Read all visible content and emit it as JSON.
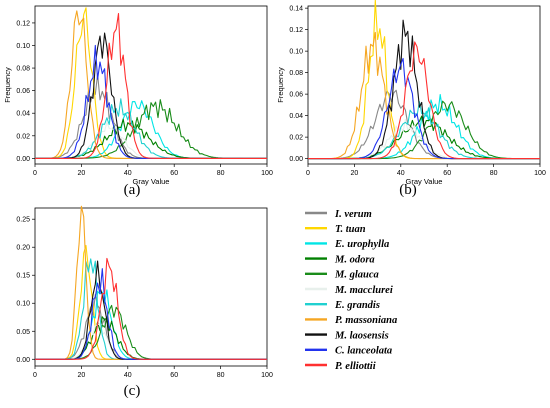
{
  "chart_data": [
    {
      "panel": "(a)",
      "type": "line",
      "xlabel": "Gray Value",
      "ylabel": "Frequency",
      "xlim": [
        0,
        100
      ],
      "ylim": [
        -0.005,
        0.135
      ],
      "xticks": [
        0,
        20,
        40,
        60,
        80,
        100
      ],
      "yticks": [
        0.0,
        0.02,
        0.04,
        0.06,
        0.08,
        0.1,
        0.12
      ],
      "ytick_labels": [
        "0.00",
        "0.02",
        "0.04",
        "0.06",
        "0.08",
        "0.10",
        "0.12"
      ],
      "series": [
        {
          "name": "I. verum",
          "color": "#888888",
          "mean": 27,
          "sd": 6,
          "peak": 0.062
        },
        {
          "name": "T. tuan",
          "color": "#ffd700",
          "mean": 21,
          "sd": 3.6,
          "peak": 0.125
        },
        {
          "name": "E. urophylla",
          "color": "#00e5e5",
          "mean": 44,
          "sd": 7,
          "peak": 0.048
        },
        {
          "name": "M. odora",
          "color": "#008000",
          "mean": 40,
          "sd": 9,
          "peak": 0.03
        },
        {
          "name": "M. glauca",
          "color": "#1a8c1a",
          "mean": 52,
          "sd": 9,
          "peak": 0.046
        },
        {
          "name": "M. macclurei",
          "color": "#e8f0ec",
          "mean": 32,
          "sd": 6,
          "peak": 0.028
        },
        {
          "name": "E. grandis",
          "color": "#20d0d0",
          "mean": 36,
          "sd": 7,
          "peak": 0.044
        },
        {
          "name": "P. massoniana",
          "color": "#f5a623",
          "mean": 19,
          "sd": 3.4,
          "peak": 0.131
        },
        {
          "name": "M. laosensis",
          "color": "#111111",
          "mean": 29,
          "sd": 4,
          "peak": 0.106
        },
        {
          "name": "C. lanceolata",
          "color": "#2233ee",
          "mean": 27,
          "sd": 4.5,
          "peak": 0.085
        },
        {
          "name": "P. elliottii",
          "color": "#ff3030",
          "mean": 35,
          "sd": 4,
          "peak": 0.115
        }
      ]
    },
    {
      "panel": "(b)",
      "type": "line",
      "xlabel": "Gray Value",
      "ylabel": "Frequency",
      "xlim": [
        0,
        100
      ],
      "ylim": [
        -0.005,
        0.142
      ],
      "xticks": [
        0,
        20,
        40,
        60,
        80,
        100
      ],
      "yticks": [
        0.0,
        0.02,
        0.04,
        0.06,
        0.08,
        0.1,
        0.12,
        0.14
      ],
      "ytick_labels": [
        "0.00",
        "0.02",
        "0.04",
        "0.06",
        "0.08",
        "0.10",
        "0.12",
        "0.14"
      ],
      "series": [
        {
          "name": "I. verum",
          "color": "#888888",
          "mean": 36,
          "sd": 7,
          "peak": 0.06
        },
        {
          "name": "T. tuan",
          "color": "#ffd700",
          "mean": 30,
          "sd": 4,
          "peak": 0.125
        },
        {
          "name": "E. urophylla",
          "color": "#00e5e5",
          "mean": 56,
          "sd": 8,
          "peak": 0.05
        },
        {
          "name": "M. odora",
          "color": "#008000",
          "mean": 50,
          "sd": 10,
          "peak": 0.035
        },
        {
          "name": "M. glauca",
          "color": "#1a8c1a",
          "mean": 60,
          "sd": 8,
          "peak": 0.05
        },
        {
          "name": "M. macclurei",
          "color": "#e8f0ec",
          "mean": 42,
          "sd": 7,
          "peak": 0.03
        },
        {
          "name": "E. grandis",
          "color": "#20d0d0",
          "mean": 48,
          "sd": 8,
          "peak": 0.045
        },
        {
          "name": "P. massoniana",
          "color": "#f5a623",
          "mean": 28,
          "sd": 5,
          "peak": 0.105
        },
        {
          "name": "M. laosensis",
          "color": "#111111",
          "mean": 42,
          "sd": 5,
          "peak": 0.115
        },
        {
          "name": "C. lanceolata",
          "color": "#2233ee",
          "mean": 40,
          "sd": 5.5,
          "peak": 0.085
        },
        {
          "name": "P. elliottii",
          "color": "#ff3030",
          "mean": 47,
          "sd": 5,
          "peak": 0.1
        }
      ]
    },
    {
      "panel": "(c)",
      "type": "line",
      "xlabel": "",
      "ylabel": "",
      "xlim": [
        0,
        100
      ],
      "ylim": [
        -0.012,
        0.27
      ],
      "xticks": [
        0,
        20,
        40,
        60,
        80,
        100
      ],
      "yticks": [
        0.0,
        0.05,
        0.1,
        0.15,
        0.2,
        0.25
      ],
      "ytick_labels": [
        "0.00",
        "0.05",
        "0.10",
        "0.15",
        "0.20",
        "0.25"
      ],
      "series": [
        {
          "name": "I. verum",
          "color": "#888888",
          "mean": 26,
          "sd": 4,
          "peak": 0.1
        },
        {
          "name": "T. tuan",
          "color": "#ffd700",
          "mean": 22,
          "sd": 2.5,
          "peak": 0.19
        },
        {
          "name": "E. urophylla",
          "color": "#00e5e5",
          "mean": 29,
          "sd": 4,
          "peak": 0.12
        },
        {
          "name": "M. odora",
          "color": "#008000",
          "mean": 30,
          "sd": 5,
          "peak": 0.07
        },
        {
          "name": "M. glauca",
          "color": "#1a8c1a",
          "mean": 34,
          "sd": 5,
          "peak": 0.09
        },
        {
          "name": "M. macclurei",
          "color": "#e8f0ec",
          "mean": 27,
          "sd": 4,
          "peak": 0.06
        },
        {
          "name": "E. grandis",
          "color": "#20d0d0",
          "mean": 24,
          "sd": 3,
          "peak": 0.18
        },
        {
          "name": "P. massoniana",
          "color": "#f5a623",
          "mean": 20,
          "sd": 2,
          "peak": 0.265
        },
        {
          "name": "M. laosensis",
          "color": "#111111",
          "mean": 27,
          "sd": 3,
          "peak": 0.15
        },
        {
          "name": "C. lanceolata",
          "color": "#2233ee",
          "mean": 28,
          "sd": 3.2,
          "peak": 0.14
        },
        {
          "name": "P. elliottii",
          "color": "#ff3030",
          "mean": 32,
          "sd": 3.5,
          "peak": 0.165
        }
      ]
    }
  ],
  "captions": [
    "(a)",
    "(b)",
    "(c)"
  ],
  "legend": [
    {
      "label": "I. verum",
      "color": "#888888"
    },
    {
      "label": "T. tuan",
      "color": "#ffd700"
    },
    {
      "label": "E. urophylla",
      "color": "#00e5e5"
    },
    {
      "label": "M. odora",
      "color": "#008000"
    },
    {
      "label": "M. glauca",
      "color": "#1a8c1a"
    },
    {
      "label": "M. macclurei",
      "color": "#e8f0ec"
    },
    {
      "label": "E. grandis",
      "color": "#20d0d0"
    },
    {
      "label": "P. massoniana",
      "color": "#f5a623"
    },
    {
      "label": "M. laosensis",
      "color": "#111111"
    },
    {
      "label": "C. lanceolata",
      "color": "#2233ee"
    },
    {
      "label": "P. elliottii",
      "color": "#ff3030"
    }
  ]
}
